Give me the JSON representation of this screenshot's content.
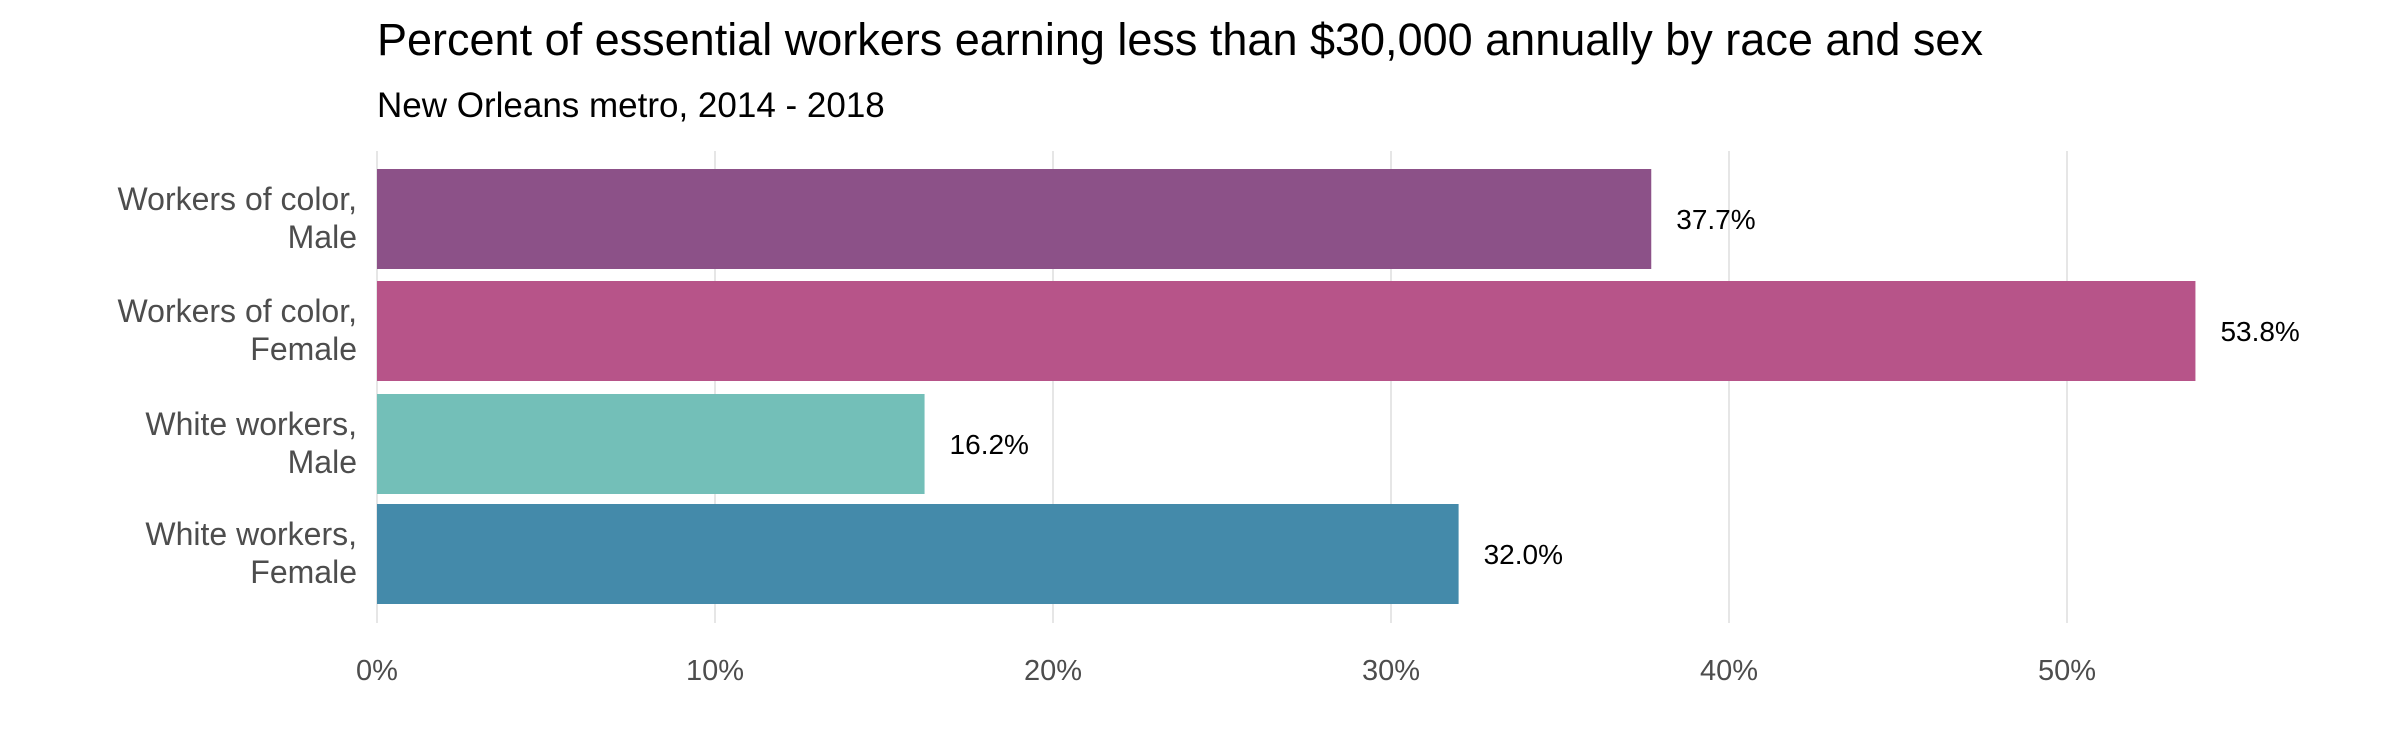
{
  "chart_data": {
    "type": "bar",
    "orientation": "horizontal",
    "title": "Percent of essential workers earning less than $30,000 annually by race and sex",
    "subtitle": "New Orleans metro, 2014 - 2018",
    "xlabel": "",
    "ylabel": "",
    "xlim": [
      0,
      56
    ],
    "grid": true,
    "categories": [
      [
        "Workers of color,",
        "Male"
      ],
      [
        "Workers of color,",
        "Female"
      ],
      [
        "White workers,",
        "Male"
      ],
      [
        "White workers,",
        "Female"
      ]
    ],
    "values": [
      37.7,
      53.8,
      16.2,
      32.0
    ],
    "value_labels": [
      "37.7%",
      "53.8%",
      "16.2%",
      "32.0%"
    ],
    "colors": [
      "#8c5188",
      "#b75489",
      "#73bfb8",
      "#448aaa"
    ],
    "x_ticks": [
      0,
      10,
      20,
      30,
      40,
      50
    ],
    "x_tick_labels": [
      "0%",
      "10%",
      "20%",
      "30%",
      "40%",
      "50%"
    ]
  }
}
